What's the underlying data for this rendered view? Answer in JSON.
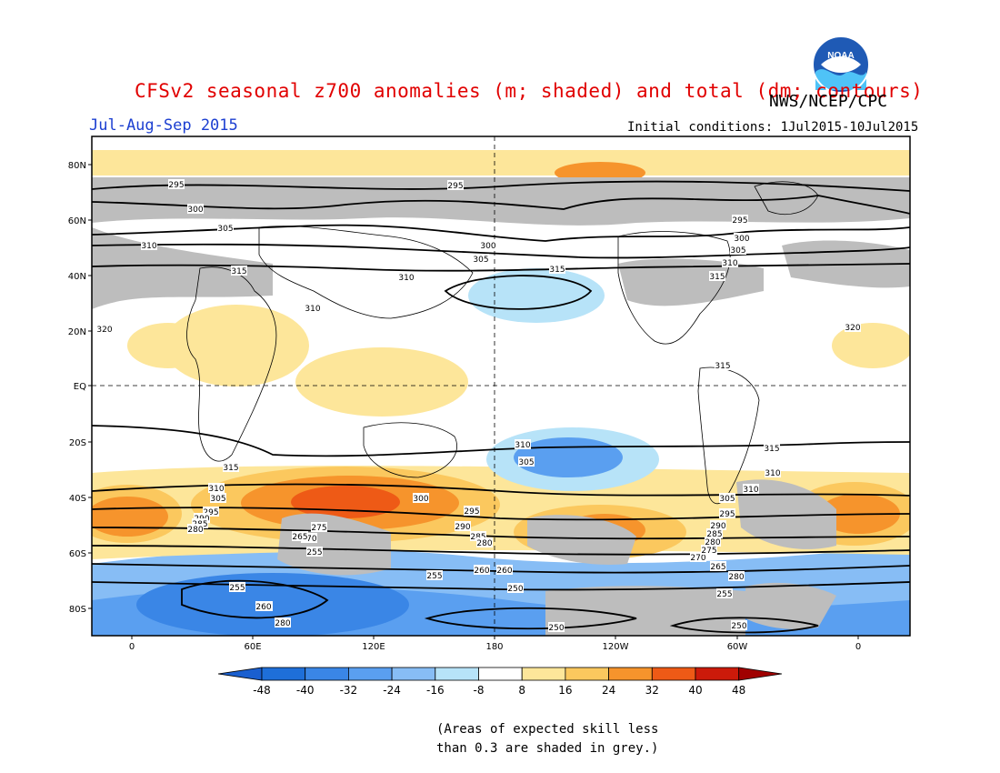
{
  "header": {
    "title": "CFSv2 seasonal z700 anomalies (m; shaded) and total (dm; contours)",
    "agency": "NWS/NCEP/CPC",
    "period": "Jul-Aug-Sep 2015",
    "initial_conditions": "Initial conditions: 1Jul2015-10Jul2015",
    "logo_text": "NOAA"
  },
  "map": {
    "lat_labels": [
      "80N",
      "60N",
      "40N",
      "20N",
      "EQ",
      "20S",
      "40S",
      "60S",
      "80S"
    ],
    "lon_labels": [
      "0",
      "60E",
      "120E",
      "180",
      "120W",
      "60W",
      "0"
    ],
    "contour_values_dm": [
      "250",
      "255",
      "260",
      "265",
      "270",
      "275",
      "280",
      "285",
      "290",
      "295",
      "300",
      "305",
      "310",
      "315",
      "320"
    ],
    "contour_labels": [
      {
        "text": "295"
      },
      {
        "text": "300"
      },
      {
        "text": "305"
      },
      {
        "text": "310"
      },
      {
        "text": "315"
      },
      {
        "text": "320"
      },
      {
        "text": "310"
      },
      {
        "text": "310"
      },
      {
        "text": "295"
      },
      {
        "text": "300"
      },
      {
        "text": "305"
      },
      {
        "text": "315"
      },
      {
        "text": "295"
      },
      {
        "text": "300"
      },
      {
        "text": "305"
      },
      {
        "text": "310"
      },
      {
        "text": "315"
      },
      {
        "text": "320"
      },
      {
        "text": "315"
      },
      {
        "text": "315"
      },
      {
        "text": "310"
      },
      {
        "text": "305"
      },
      {
        "text": "310"
      },
      {
        "text": "315"
      },
      {
        "text": "310"
      },
      {
        "text": "305"
      },
      {
        "text": "295"
      },
      {
        "text": "290"
      },
      {
        "text": "285"
      },
      {
        "text": "280"
      },
      {
        "text": "310"
      },
      {
        "text": "305"
      },
      {
        "text": "295"
      },
      {
        "text": "290"
      },
      {
        "text": "285"
      },
      {
        "text": "280"
      },
      {
        "text": "275"
      },
      {
        "text": "270"
      },
      {
        "text": "265"
      },
      {
        "text": "260"
      },
      {
        "text": "255"
      },
      {
        "text": "300"
      },
      {
        "text": "295"
      },
      {
        "text": "290"
      },
      {
        "text": "285"
      },
      {
        "text": "280"
      },
      {
        "text": "275"
      },
      {
        "text": "270"
      },
      {
        "text": "265"
      },
      {
        "text": "260"
      },
      {
        "text": "255"
      },
      {
        "text": "250"
      },
      {
        "text": "255"
      },
      {
        "text": "260"
      },
      {
        "text": "280"
      },
      {
        "text": "255"
      },
      {
        "text": "250"
      },
      {
        "text": "250"
      },
      {
        "text": "260"
      },
      {
        "text": "280"
      }
    ],
    "colors": {
      "neg48": "#1e6fd9",
      "neg40": "#3a86e6",
      "neg32": "#5a9ff0",
      "neg24": "#87bdf5",
      "neg16": "#b7e3f8",
      "neg8": "#ffffff",
      "pos8": "#ffffff",
      "pos16": "#fde69a",
      "pos24": "#fbc85e",
      "pos32": "#f6942c",
      "pos40": "#ee5a16",
      "pos48": "#cc1a0a",
      "low_skill_grey": "#bdbdbd"
    }
  },
  "colorbar": {
    "ticks": [
      "-48",
      "-40",
      "-32",
      "-24",
      "-16",
      "-8",
      "8",
      "16",
      "24",
      "32",
      "40",
      "48"
    ],
    "colors": [
      "#1e6fd9",
      "#3a86e6",
      "#5a9ff0",
      "#87bdf5",
      "#b7e3f8",
      "#ffffff",
      "#fde69a",
      "#fbc85e",
      "#f6942c",
      "#ee5a16",
      "#cc1a0a"
    ]
  },
  "note": {
    "line1": "(Areas of expected skill less",
    "line2": "than 0.3 are shaded in grey.)"
  }
}
